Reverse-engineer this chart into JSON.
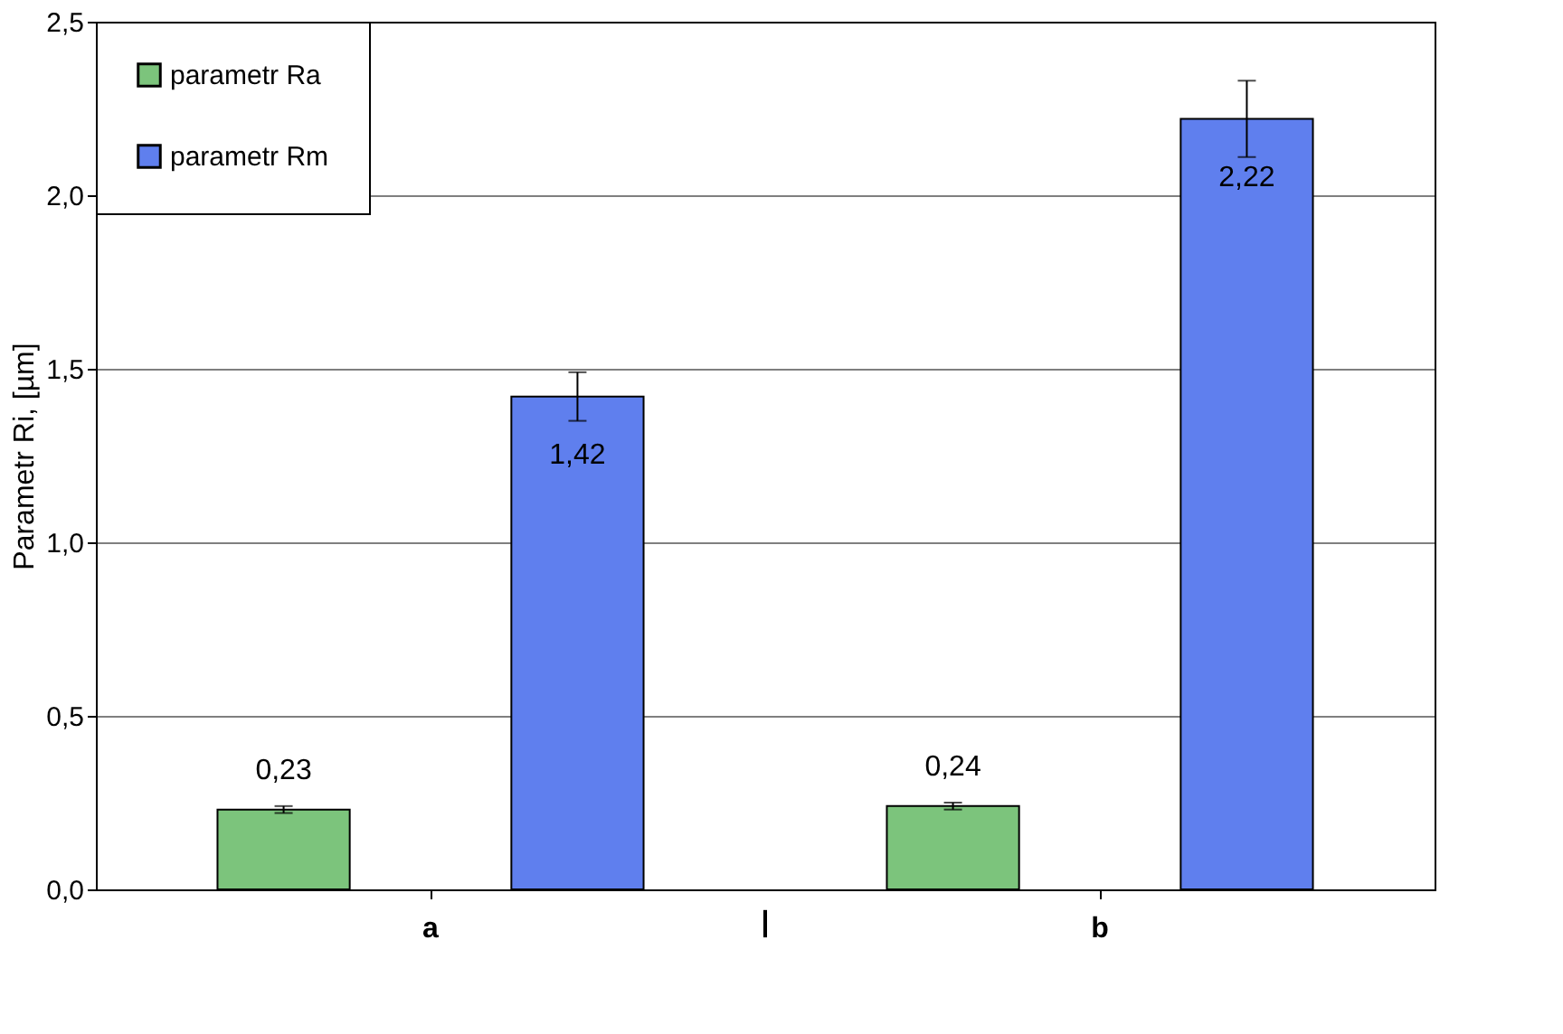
{
  "chart_data": {
    "type": "bar",
    "ylabel": "Parametr Ri, [µm]",
    "categories": [
      "a",
      "b"
    ],
    "series": [
      {
        "name": "parametr Ra",
        "color": "#7cc47c",
        "values": [
          0.23,
          0.24
        ],
        "errors": [
          0.01,
          0.01
        ],
        "value_labels": [
          "0,23",
          "0,24"
        ]
      },
      {
        "name": "parametr Rm",
        "color": "#5f7fee",
        "values": [
          1.42,
          2.22
        ],
        "errors": [
          0.07,
          0.11
        ],
        "value_labels": [
          "1,42",
          "2,22"
        ]
      }
    ],
    "ylim": [
      0,
      2.5
    ],
    "yticks": [
      {
        "value": 0,
        "label": "0,0"
      },
      {
        "value": 0.5,
        "label": "0,5"
      },
      {
        "value": 1,
        "label": "1,0"
      },
      {
        "value": 1.5,
        "label": "1,5"
      },
      {
        "value": 2,
        "label": "2,0"
      },
      {
        "value": 2.5,
        "label": "2,5"
      }
    ],
    "grid": "y",
    "legend": "top left",
    "annotations": [
      "|"
    ]
  }
}
